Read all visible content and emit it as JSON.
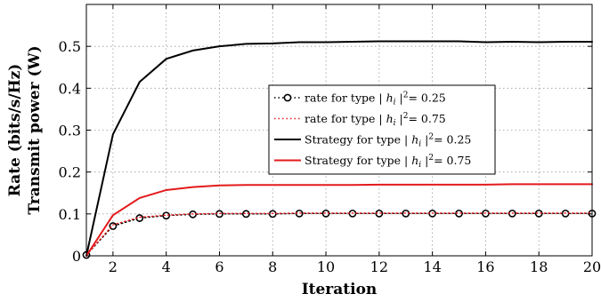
{
  "chart_data": {
    "type": "line",
    "xlabel": "Iteration",
    "ylabel_lines": [
      "Rate (bits/s/Hz)",
      "Transmit power (W)"
    ],
    "xlim": [
      1,
      20
    ],
    "ylim": [
      0,
      0.6
    ],
    "xticks": [
      2,
      4,
      6,
      8,
      10,
      12,
      14,
      16,
      18,
      20
    ],
    "yticks": [
      0,
      0.1,
      0.2,
      0.3,
      0.4,
      0.5
    ],
    "ytick_labels": [
      "0",
      "0.1",
      "0.2",
      "0.3",
      "0.4",
      "0.5"
    ],
    "grid": true,
    "legend_position": "center",
    "x": [
      1,
      2,
      3,
      4,
      5,
      6,
      7,
      8,
      9,
      10,
      11,
      12,
      13,
      14,
      15,
      16,
      17,
      18,
      19,
      20
    ],
    "series": [
      {
        "name": "rate for type | h_i |² = 0.25",
        "legend_parts": [
          "rate for type | ",
          "h",
          "i",
          " |",
          "2",
          "= 0.25"
        ],
        "color": "#000000",
        "line_style": "dotted",
        "marker": "circle",
        "values": [
          0.002,
          0.071,
          0.09,
          0.096,
          0.099,
          0.1,
          0.1,
          0.1,
          0.101,
          0.101,
          0.101,
          0.101,
          0.101,
          0.101,
          0.101,
          0.101,
          0.101,
          0.101,
          0.101,
          0.101
        ]
      },
      {
        "name": "rate for type | h_i |² = 0.75",
        "legend_parts": [
          "rate for type | ",
          "h",
          "i",
          " |",
          "2",
          "= 0.75"
        ],
        "color": "#e31a1c",
        "line_style": "dotted",
        "marker": "none",
        "values": [
          0.002,
          0.074,
          0.092,
          0.097,
          0.1,
          0.101,
          0.101,
          0.101,
          0.102,
          0.102,
          0.102,
          0.102,
          0.102,
          0.102,
          0.102,
          0.102,
          0.102,
          0.102,
          0.102,
          0.102
        ]
      },
      {
        "name": "Strategy for type | h_i |² = 0.25",
        "legend_parts": [
          "Strategy for type | ",
          "h",
          "i",
          " |",
          "2",
          "= 0.25"
        ],
        "color": "#000000",
        "line_style": "solid",
        "marker": "none",
        "values": [
          0.0,
          0.29,
          0.415,
          0.47,
          0.49,
          0.5,
          0.506,
          0.507,
          0.51,
          0.51,
          0.511,
          0.512,
          0.512,
          0.512,
          0.512,
          0.51,
          0.511,
          0.51,
          0.511,
          0.511
        ]
      },
      {
        "name": "Strategy for type | h_i |² = 0.75",
        "legend_parts": [
          "Strategy for type | ",
          "h",
          "i",
          " |",
          "2",
          "= 0.75"
        ],
        "color": "#e31a1c",
        "line_style": "solid",
        "marker": "none",
        "values": [
          0.0,
          0.097,
          0.138,
          0.157,
          0.164,
          0.168,
          0.169,
          0.169,
          0.169,
          0.169,
          0.169,
          0.17,
          0.17,
          0.17,
          0.17,
          0.17,
          0.171,
          0.171,
          0.171,
          0.171
        ]
      }
    ]
  }
}
